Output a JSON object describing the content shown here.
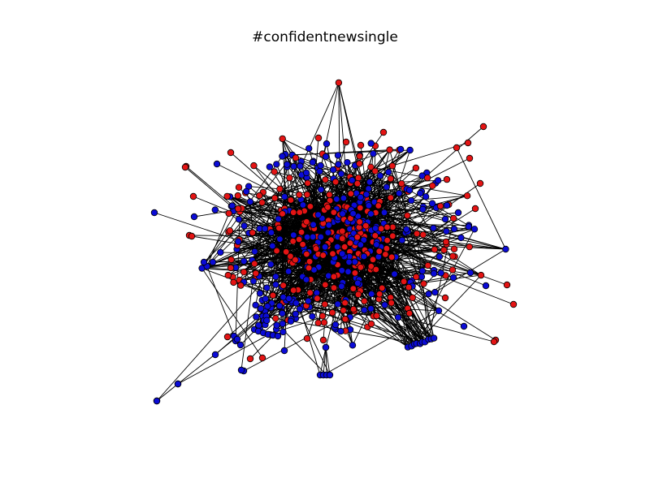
{
  "figure": {
    "title": "#confidentnewsingle",
    "background": "#ffffff"
  },
  "network": {
    "node_colors": {
      "red": "#e41414",
      "blue": "#0b0bd6"
    },
    "edge_color": "#000000",
    "node_outline_color": "#000000",
    "seed": 7
  }
}
